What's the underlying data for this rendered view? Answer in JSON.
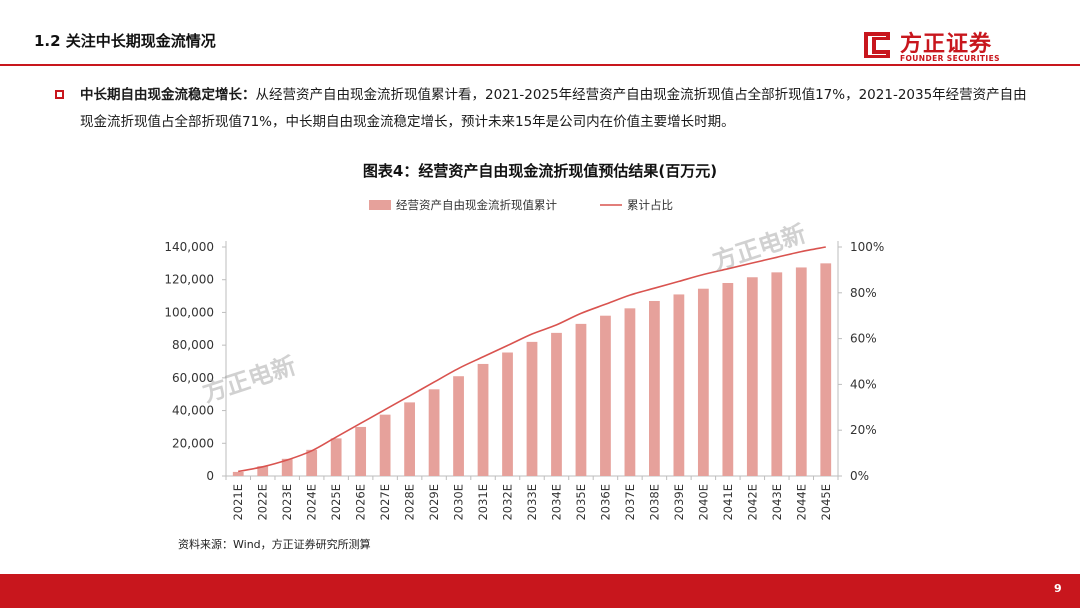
{
  "header": {
    "title": "1.2 关注中长期现金流情况"
  },
  "logo": {
    "name_cn": "方正证券",
    "name_en": "FOUNDER SECURITIES"
  },
  "paragraph": {
    "lead": "中长期自由现金流稳定增长：",
    "body": "从经营资产自由现金流折现值累计看，2021-2025年经营资产自由现金流折现值占全部折现值17%，2021-2035年经营资产自由现金流折现值占全部折现值71%，中长期自由现金流稳定增长，预计未来15年是公司内在价值主要增长时期。"
  },
  "chart_data": {
    "type": "bar",
    "title": "图表4：经营资产自由现金流折现值预估结果(百万元)",
    "categories": [
      "2021E",
      "2022E",
      "2023E",
      "2024E",
      "2025E",
      "2026E",
      "2027E",
      "2028E",
      "2029E",
      "2030E",
      "2031E",
      "2032E",
      "2033E",
      "2034E",
      "2035E",
      "2036E",
      "2037E",
      "2038E",
      "2039E",
      "2040E",
      "2041E",
      "2042E",
      "2043E",
      "2044E",
      "2045E"
    ],
    "series": [
      {
        "name": "经营资产自由现金流折现值累计",
        "kind": "bar",
        "axis": "left",
        "color": "#e6a19b",
        "values": [
          2500,
          6000,
          10500,
          16000,
          23000,
          30000,
          37500,
          45000,
          53000,
          61000,
          68500,
          75500,
          82000,
          87500,
          93000,
          98000,
          102500,
          107000,
          111000,
          114500,
          118000,
          121500,
          124500,
          127500,
          130000
        ]
      },
      {
        "name": "累计占比",
        "kind": "line",
        "axis": "right",
        "color": "#d9534f",
        "values": [
          0.02,
          0.04,
          0.07,
          0.11,
          0.17,
          0.23,
          0.29,
          0.35,
          0.41,
          0.47,
          0.52,
          0.57,
          0.62,
          0.66,
          0.71,
          0.75,
          0.79,
          0.82,
          0.85,
          0.88,
          0.905,
          0.93,
          0.955,
          0.98,
          1.0
        ]
      }
    ],
    "y_left": {
      "min": 0,
      "max": 140000,
      "ticks": [
        "0",
        "20,000",
        "40,000",
        "60,000",
        "80,000",
        "100,000",
        "120,000",
        "140,000"
      ]
    },
    "y_right": {
      "min": 0,
      "max": 1,
      "ticks": [
        "0%",
        "20%",
        "40%",
        "60%",
        "80%",
        "100%"
      ]
    },
    "grid": false,
    "legend_position": "top-center"
  },
  "watermark": {
    "text": "方正电新"
  },
  "source": {
    "text": "资料来源：Wind，方正证券研究所测算"
  },
  "page": {
    "number": "9"
  }
}
